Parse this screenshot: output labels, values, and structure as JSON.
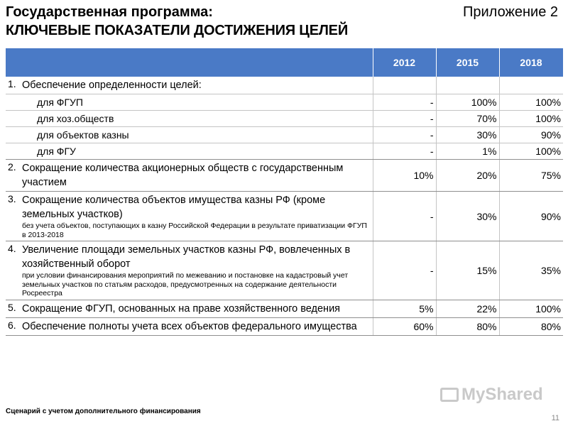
{
  "header": {
    "title_line1": "Государственная программа:",
    "title_line2": "КЛЮЧЕВЫЕ ПОКАЗАТЕЛИ ДОСТИЖЕНИЯ ЦЕЛЕЙ",
    "appendix": "Приложение 2"
  },
  "table": {
    "columns": [
      "",
      "2012",
      "2015",
      "2018"
    ],
    "header_color": "#4a7ac6",
    "rows": [
      {
        "num": "1.",
        "label": "Обеспечение определенности целей:",
        "values": [
          "",
          "",
          ""
        ]
      },
      {
        "label": "для ФГУП",
        "values": [
          "-",
          "100%",
          "100%"
        ]
      },
      {
        "label": "для хоз.обществ",
        "values": [
          "-",
          "70%",
          "100%"
        ]
      },
      {
        "label": "для объектов казны",
        "values": [
          "-",
          "30%",
          "90%"
        ]
      },
      {
        "label": "для ФГУ",
        "values": [
          "-",
          "1%",
          "100%"
        ]
      },
      {
        "num": "2.",
        "label": "Сокращение количества акционерных обществ с государственным участием",
        "values": [
          "10%",
          "20%",
          "75%"
        ]
      },
      {
        "num": "3.",
        "label": "Сокращение количества объектов имущества казны РФ (кроме земельных участков)",
        "note": "без учета объектов, поступающих в казну Российской Федерации в результате приватизации ФГУП в 2013-2018",
        "values": [
          "-",
          "30%",
          "90%"
        ]
      },
      {
        "num": "4.",
        "label": "Увеличение площади земельных участков казны РФ, вовлеченных в хозяйственный оборот",
        "note": "при условии финансирования мероприятий по межеванию и постановке на кадастровый учет земельных участков по статьям расходов, предусмотренных на содержание деятельности Росреестра",
        "values": [
          "-",
          "15%",
          "35%"
        ]
      },
      {
        "num": "5.",
        "label": "Сокращение ФГУП, основанных на праве хозяйственного ведения",
        "values": [
          "5%",
          "22%",
          "100%"
        ]
      },
      {
        "num": "6.",
        "label": "Обеспечение полноты учета всех объектов федерального имущества",
        "values": [
          "60%",
          "80%",
          "80%"
        ]
      }
    ]
  },
  "footer": {
    "scenario": "Сценарий с учетом дополнительного финансирования",
    "page_number": "11"
  },
  "watermark": "MyShared"
}
